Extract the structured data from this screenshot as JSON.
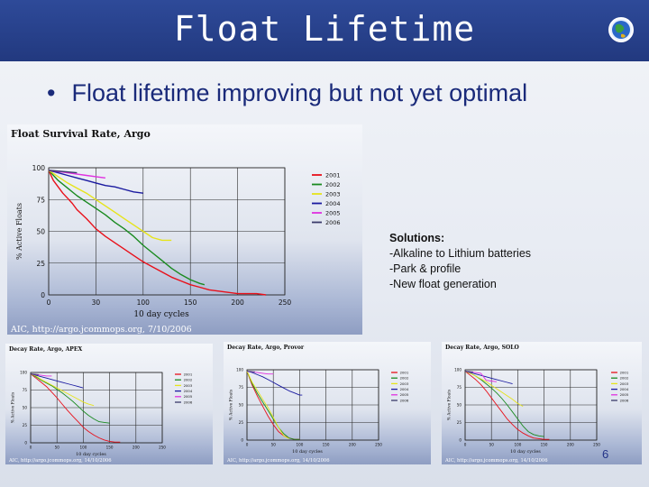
{
  "slide": {
    "title": "Float Lifetime",
    "bullet": "Float lifetime improving but not yet optimal",
    "solutions_heading": "Solutions:",
    "solutions": [
      "-Alkaline to Lithium batteries",
      "-Park & profile",
      "-New float generation"
    ],
    "page_number": "6"
  },
  "colors": {
    "series": [
      "#e8101a",
      "#1a8a20",
      "#e6e41a",
      "#1a1aa0",
      "#e030e0",
      "#3a3a6a"
    ]
  },
  "chart_data": [
    {
      "type": "line",
      "title": "Float Survival Rate, Argo",
      "xlabel": "10 day cycles",
      "ylabel": "% Active Floats",
      "xlim": [
        0,
        250
      ],
      "ylim": [
        0,
        100
      ],
      "xticks": [
        "0",
        "30",
        "100",
        "150",
        "200",
        "250"
      ],
      "yticks": [
        "0",
        "25",
        "50",
        "75",
        "100"
      ],
      "grid": true,
      "legend": "right",
      "credit": "AIC, http://argo.jcommops.org, 7/10/2006",
      "series": [
        {
          "name": "2001",
          "x": [
            0,
            5,
            10,
            15,
            20,
            25,
            30,
            40,
            50,
            60,
            70,
            80,
            90,
            100,
            110,
            120,
            130,
            140,
            150,
            160,
            170,
            180,
            190,
            200,
            220,
            230
          ],
          "y": [
            98,
            90,
            85,
            80,
            76,
            72,
            67,
            60,
            52,
            46,
            41,
            36,
            31,
            26,
            22,
            18,
            14,
            11,
            8,
            6,
            4,
            3,
            2,
            1,
            1,
            0
          ]
        },
        {
          "name": "2002",
          "x": [
            0,
            10,
            20,
            30,
            40,
            50,
            60,
            70,
            80,
            90,
            100,
            110,
            120,
            130,
            140,
            150,
            160,
            165
          ],
          "y": [
            98,
            90,
            84,
            78,
            73,
            68,
            63,
            57,
            52,
            46,
            39,
            33,
            27,
            21,
            16,
            12,
            9,
            8
          ]
        },
        {
          "name": "2003",
          "x": [
            0,
            10,
            20,
            30,
            40,
            50,
            60,
            70,
            80,
            90,
            100,
            110,
            120,
            130
          ],
          "y": [
            98,
            93,
            88,
            84,
            80,
            75,
            70,
            65,
            60,
            55,
            50,
            45,
            43,
            43
          ]
        },
        {
          "name": "2004",
          "x": [
            0,
            10,
            20,
            30,
            40,
            50,
            60,
            70,
            80,
            90,
            100
          ],
          "y": [
            98,
            96,
            94,
            92,
            90,
            88,
            86,
            85,
            83,
            81,
            80
          ]
        },
        {
          "name": "2005",
          "x": [
            0,
            10,
            20,
            30,
            40,
            50,
            60
          ],
          "y": [
            98,
            97,
            96,
            95,
            94,
            93,
            92
          ]
        },
        {
          "name": "2006",
          "x": [
            0,
            15,
            30
          ],
          "y": [
            98,
            97,
            96
          ]
        }
      ]
    },
    {
      "type": "line",
      "title": "Decay Rate, Argo, APEX",
      "xlabel": "10 day cycles",
      "ylabel": "% Active Floats",
      "xlim": [
        0,
        250
      ],
      "ylim": [
        0,
        100
      ],
      "xticks": [
        "0",
        "50",
        "100",
        "150",
        "200",
        "250"
      ],
      "yticks": [
        "0",
        "25",
        "50",
        "75",
        "100"
      ],
      "grid": true,
      "legend": "right",
      "credit": "AIC, http://argo.jcommops.org, 14/10/2006",
      "series": [
        {
          "name": "2001",
          "x": [
            0,
            10,
            20,
            30,
            40,
            50,
            60,
            70,
            80,
            90,
            100,
            110,
            120,
            130,
            140,
            150,
            160,
            170
          ],
          "y": [
            98,
            92,
            86,
            80,
            72,
            64,
            55,
            46,
            38,
            30,
            22,
            16,
            11,
            7,
            4,
            2,
            1,
            1
          ]
        },
        {
          "name": "2002",
          "x": [
            0,
            10,
            20,
            30,
            40,
            50,
            60,
            70,
            80,
            90,
            100,
            110,
            120,
            130,
            140,
            150
          ],
          "y": [
            98,
            94,
            89,
            85,
            81,
            76,
            71,
            65,
            59,
            52,
            45,
            39,
            34,
            30,
            29,
            28
          ]
        },
        {
          "name": "2003",
          "x": [
            0,
            10,
            20,
            30,
            40,
            50,
            60,
            70,
            80,
            90,
            100,
            110,
            120
          ],
          "y": [
            98,
            95,
            90,
            86,
            82,
            78,
            74,
            70,
            66,
            62,
            58,
            55,
            53
          ]
        },
        {
          "name": "2004",
          "x": [
            0,
            10,
            20,
            30,
            40,
            50,
            60,
            70,
            80,
            90,
            100
          ],
          "y": [
            98,
            96,
            94,
            92,
            90,
            88,
            86,
            84,
            82,
            80,
            78
          ]
        },
        {
          "name": "2005",
          "x": [
            0,
            10,
            20,
            30,
            40
          ],
          "y": [
            98,
            97,
            96,
            95,
            95
          ]
        },
        {
          "name": "2006",
          "x": [
            0,
            15
          ],
          "y": [
            98,
            97
          ]
        }
      ]
    },
    {
      "type": "line",
      "title": "Decay Rate, Argo, Provor",
      "xlabel": "10 day cycles",
      "ylabel": "% Active Floats",
      "xlim": [
        0,
        250
      ],
      "ylim": [
        0,
        100
      ],
      "xticks": [
        "0",
        "50",
        "100",
        "150",
        "200",
        "250"
      ],
      "yticks": [
        "0",
        "25",
        "50",
        "75",
        "100"
      ],
      "grid": true,
      "legend": "right",
      "credit": "AIC, http://argo.jcommops.org, 14/10/2006",
      "series": [
        {
          "name": "2001",
          "x": [
            0,
            10,
            20,
            30,
            40,
            50,
            60,
            70,
            80,
            90,
            100
          ],
          "y": [
            98,
            78,
            62,
            48,
            34,
            22,
            12,
            6,
            3,
            1,
            1
          ]
        },
        {
          "name": "2002",
          "x": [
            0,
            10,
            20,
            30,
            40,
            50,
            60,
            70,
            80,
            90,
            100
          ],
          "y": [
            98,
            80,
            66,
            54,
            42,
            30,
            18,
            9,
            3,
            1,
            1
          ]
        },
        {
          "name": "2003",
          "x": [
            0,
            10,
            20,
            30,
            40,
            50,
            60,
            70,
            80
          ],
          "y": [
            98,
            82,
            70,
            58,
            46,
            32,
            18,
            6,
            2
          ]
        },
        {
          "name": "2004",
          "x": [
            0,
            10,
            20,
            30,
            40,
            50,
            60,
            70,
            80,
            90,
            100,
            105
          ],
          "y": [
            98,
            96,
            93,
            90,
            86,
            82,
            78,
            74,
            70,
            67,
            64,
            64
          ]
        },
        {
          "name": "2005",
          "x": [
            0,
            10,
            20,
            30,
            40,
            50
          ],
          "y": [
            98,
            97,
            96,
            95,
            94,
            94
          ]
        },
        {
          "name": "2006",
          "x": [
            0,
            15
          ],
          "y": [
            98,
            97
          ]
        }
      ]
    },
    {
      "type": "line",
      "title": "Decay Rate, Argo, SOLO",
      "xlabel": "10 day cycles",
      "ylabel": "% Active Floats",
      "xlim": [
        0,
        250
      ],
      "ylim": [
        0,
        100
      ],
      "xticks": [
        "0",
        "50",
        "100",
        "150",
        "200",
        "250"
      ],
      "yticks": [
        "0",
        "25",
        "50",
        "75",
        "100"
      ],
      "grid": true,
      "legend": "right",
      "credit": "AIC, http://argo.jcommops.org, 14/10/2006",
      "series": [
        {
          "name": "2001",
          "x": [
            0,
            10,
            20,
            30,
            40,
            50,
            60,
            70,
            80,
            90,
            100,
            110,
            120,
            130,
            140,
            150,
            160
          ],
          "y": [
            98,
            92,
            86,
            79,
            70,
            60,
            50,
            40,
            30,
            22,
            15,
            10,
            6,
            3,
            2,
            1,
            1
          ]
        },
        {
          "name": "2002",
          "x": [
            0,
            10,
            20,
            30,
            40,
            50,
            60,
            70,
            80,
            90,
            100,
            110,
            120,
            130,
            140,
            150
          ],
          "y": [
            98,
            95,
            91,
            86,
            80,
            74,
            67,
            59,
            50,
            40,
            30,
            20,
            12,
            8,
            6,
            5
          ]
        },
        {
          "name": "2003",
          "x": [
            0,
            10,
            20,
            30,
            40,
            50,
            60,
            70,
            80,
            90,
            100,
            110
          ],
          "y": [
            98,
            95,
            91,
            87,
            83,
            78,
            73,
            68,
            63,
            58,
            52,
            48
          ]
        },
        {
          "name": "2004",
          "x": [
            0,
            10,
            20,
            30,
            40,
            50,
            60,
            70,
            80,
            90
          ],
          "y": [
            98,
            96,
            94,
            92,
            90,
            88,
            86,
            84,
            82,
            80
          ]
        },
        {
          "name": "2005",
          "x": [
            0,
            10,
            20,
            30,
            40,
            50,
            60
          ],
          "y": [
            98,
            97,
            96,
            95,
            85,
            84,
            83
          ]
        },
        {
          "name": "2006",
          "x": [
            0,
            15
          ],
          "y": [
            98,
            97
          ]
        }
      ]
    }
  ]
}
